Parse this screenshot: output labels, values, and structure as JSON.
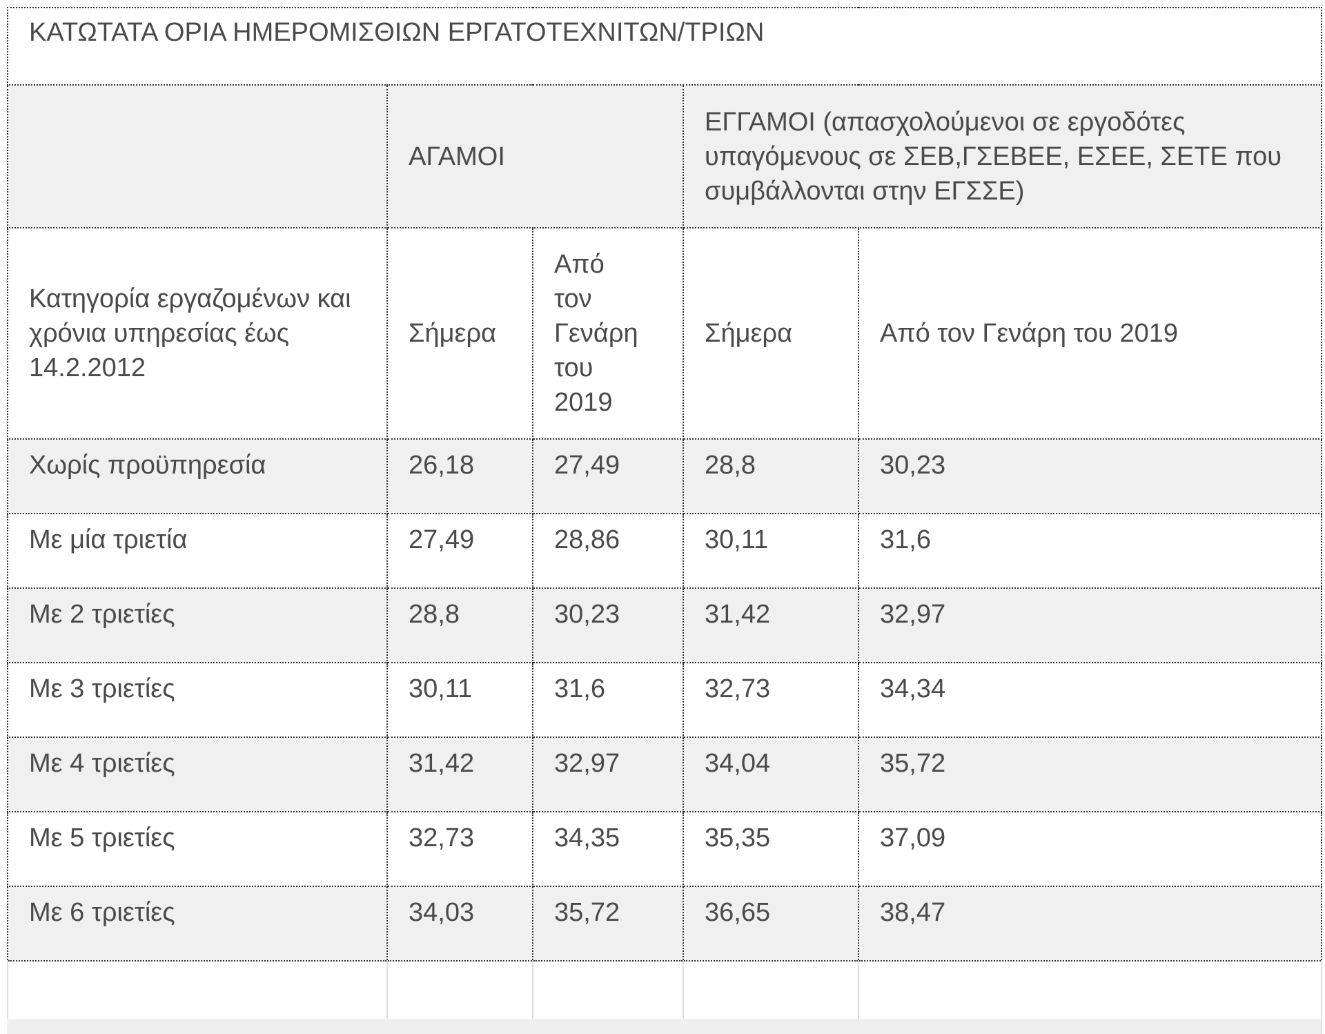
{
  "table": {
    "title": "ΚΑΤΩΤΑΤΑ ΟΡΙΑ ΗΜΕΡΟΜΙΣΘΙΩΝ ΕΡΓΑΤΟΤΕΧΝΙΤΩΝ/ΤΡΙΩΝ",
    "groups": [
      "ΑΓΑΜΟΙ",
      "ΕΓΓΑΜΟΙ (απασχολούμενοι σε εργοδότες υπαγόμενους σε ΣΕΒ,ΓΣΕΒΕΕ, ΕΣΕΕ, ΣΕΤΕ που συμβάλλονται στην ΕΓΣΣΕ)"
    ],
    "headers": [
      "Κατηγορία εργαζομένων και χρόνια υπηρεσίας έως 14.2.2012",
      "Σήμερα",
      "Από τον Γενάρη του 2019",
      "Σήμερα",
      "Από τον Γενάρη του 2019"
    ],
    "rows": [
      [
        "Χωρίς προϋπηρεσία",
        "26,18",
        "27,49",
        "28,8",
        "30,23"
      ],
      [
        "Με μία τριετία",
        "27,49",
        "28,86",
        "30,11",
        "31,6"
      ],
      [
        "Με 2 τριετίες",
        "28,8",
        "30,23",
        "31,42",
        "32,97"
      ],
      [
        "Με 3 τριετίες",
        "30,11",
        "31,6",
        "32,73",
        "34,34"
      ],
      [
        "Με 4 τριετίες",
        "31,42",
        "32,97",
        "34,04",
        "35,72"
      ],
      [
        "Με 5 τριετίες",
        "32,73",
        "34,35",
        "35,35",
        "37,09"
      ],
      [
        "Με 6 τριετίες",
        "34,03",
        "35,72",
        "36,65",
        "38,47"
      ]
    ]
  }
}
